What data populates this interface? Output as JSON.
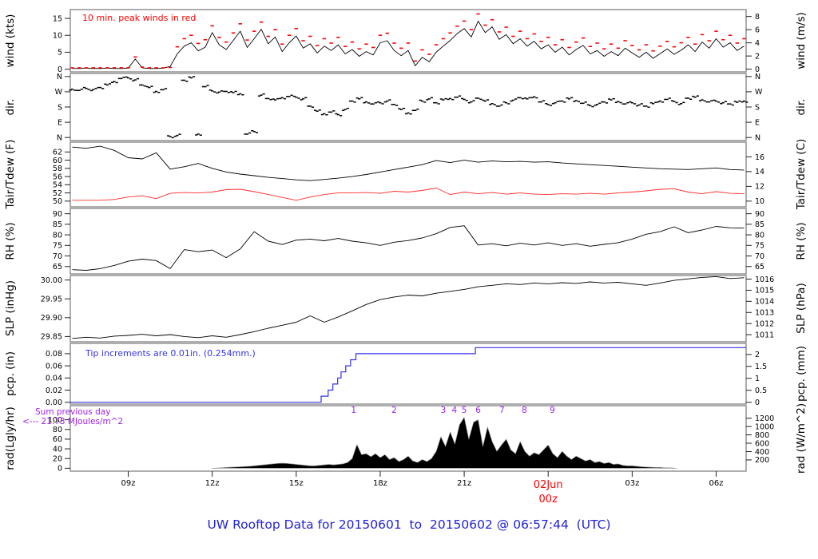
{
  "page": {
    "footer": "UW Rooftop Data for 20150601  to  20150602 @ 06:57:44  (UTC)",
    "colors": {
      "accent_red": "#ff0000",
      "precip_blue": "#3333ee",
      "annotation_purple": "#a020f0",
      "title_blue": "#2222dd",
      "trace_black": "#000000",
      "panel_border": "#777777"
    }
  },
  "x_axis": {
    "tmin": 6.93,
    "tmax": 31.07,
    "ticks": [
      {
        "t": 9,
        "label": "09z"
      },
      {
        "t": 12,
        "label": "12z"
      },
      {
        "t": 15,
        "label": "15z"
      },
      {
        "t": 18,
        "label": "18z"
      },
      {
        "t": 21,
        "label": "21z"
      },
      {
        "t": 24,
        "label": "00z",
        "label2": "02Jun",
        "color": "#ff0000"
      },
      {
        "t": 27,
        "label": "03z"
      },
      {
        "t": 30,
        "label": "06z"
      }
    ]
  },
  "chart_data": [
    {
      "id": "wind",
      "type": "line",
      "left_label": "wind (kts)",
      "right_label": "wind (m/s)",
      "annotation": "10 min. peak winds in red",
      "ylim": [
        -0.8,
        17.6
      ],
      "left_ticks": [
        {
          "v": 0,
          "label": "0"
        },
        {
          "v": 5,
          "label": "5"
        },
        {
          "v": 10,
          "label": "10"
        },
        {
          "v": 15,
          "label": "15"
        }
      ],
      "right_ticks": [
        {
          "v": 0,
          "label": "0"
        },
        {
          "v": 3.889,
          "label": "2"
        },
        {
          "v": 7.777,
          "label": "4"
        },
        {
          "v": 11.666,
          "label": "6"
        },
        {
          "v": 15.555,
          "label": "8"
        }
      ],
      "x_start": 7,
      "x_step": 0.25,
      "avg_kts": [
        0.2,
        0.2,
        0.3,
        0.2,
        0.2,
        0.3,
        0.2,
        0.2,
        0.3,
        3.0,
        0.4,
        0.2,
        0.2,
        0.3,
        0.8,
        4.5,
        6.8,
        7.8,
        5.4,
        6.5,
        10.8,
        7.2,
        5.8,
        8.5,
        11.2,
        6.4,
        9.0,
        11.8,
        7.5,
        9.5,
        5.2,
        7.8,
        9.8,
        6.2,
        7.5,
        4.8,
        6.8,
        5.5,
        7.2,
        4.5,
        5.8,
        3.8,
        5.2,
        4.2,
        7.8,
        8.4,
        5.5,
        4.0,
        5.5,
        1.0,
        3.5,
        2.2,
        5.0,
        6.8,
        8.5,
        10.5,
        12.0,
        9.5,
        14.2,
        10.8,
        12.5,
        8.8,
        10.2,
        7.5,
        9.0,
        6.8,
        8.2,
        6.0,
        7.2,
        5.0,
        6.5,
        4.2,
        5.8,
        7.0,
        4.5,
        5.5,
        3.8,
        5.2,
        4.0,
        6.2,
        4.8,
        3.5,
        5.0,
        3.2,
        4.6,
        6.0,
        4.4,
        5.6,
        7.2,
        5.2,
        8.0,
        6.2,
        9.0,
        6.5,
        7.8,
        5.5,
        6.8
      ],
      "peak_kts": [
        0.4,
        0.4,
        0.4,
        0.4,
        0.4,
        0.4,
        0.4,
        0.4,
        0.4,
        3.6,
        0.6,
        0.4,
        0.4,
        0.4,
        0.5,
        6.6,
        9.0,
        10.0,
        7.6,
        8.7,
        12.8,
        9.4,
        8.0,
        10.7,
        13.4,
        8.6,
        11.2,
        13.9,
        9.7,
        11.7,
        7.4,
        10.0,
        12.0,
        8.4,
        9.7,
        7.0,
        9.0,
        7.7,
        9.4,
        6.7,
        8.0,
        6.0,
        7.4,
        6.4,
        10.0,
        10.6,
        7.7,
        6.2,
        7.7,
        2.4,
        5.7,
        4.4,
        7.2,
        9.0,
        10.7,
        12.7,
        14.2,
        11.7,
        16.3,
        13.0,
        14.6,
        11.0,
        12.4,
        9.7,
        11.2,
        9.0,
        10.4,
        8.2,
        9.4,
        7.2,
        8.7,
        6.4,
        8.0,
        9.2,
        6.7,
        7.7,
        6.0,
        7.4,
        6.2,
        8.4,
        7.0,
        5.7,
        7.2,
        5.4,
        6.8,
        8.2,
        6.6,
        7.8,
        9.4,
        7.4,
        10.2,
        8.4,
        11.2,
        8.7,
        10.0,
        7.7,
        9.0
      ]
    },
    {
      "id": "dir",
      "type": "scatter",
      "left_label": "dir.",
      "right_label": "dir.",
      "ylim": [
        -18,
        378
      ],
      "left_ticks": [
        {
          "v": 0,
          "label": "N"
        },
        {
          "v": 90,
          "label": "E"
        },
        {
          "v": 180,
          "label": "S"
        },
        {
          "v": 270,
          "label": "W"
        },
        {
          "v": 360,
          "label": "N"
        }
      ],
      "right_ticks": [
        {
          "v": 0,
          "label": "N"
        },
        {
          "v": 90,
          "label": "E"
        },
        {
          "v": 180,
          "label": "S"
        },
        {
          "v": 270,
          "label": "W"
        },
        {
          "v": 360,
          "label": "N"
        }
      ],
      "x_start": 7,
      "x_step": 0.25,
      "deg": [
        285,
        278,
        290,
        282,
        295,
        310,
        330,
        348,
        352,
        340,
        310,
        295,
        272,
        282,
        5,
        12,
        338,
        352,
        20,
        300,
        275,
        268,
        272,
        265,
        258,
        20,
        35,
        250,
        230,
        222,
        235,
        242,
        238,
        228,
        185,
        155,
        140,
        150,
        135,
        165,
        215,
        228,
        210,
        198,
        205,
        215,
        195,
        165,
        145,
        160,
        215,
        228,
        205,
        222,
        230,
        238,
        225,
        210,
        232,
        215,
        200,
        185,
        205,
        220,
        235,
        228,
        240,
        210,
        195,
        205,
        215,
        228,
        218,
        202,
        188,
        195,
        210,
        222,
        212,
        198,
        205,
        192,
        185,
        200,
        215,
        225,
        212,
        200,
        232,
        238,
        222,
        210,
        215,
        205,
        198,
        208,
        215
      ]
    },
    {
      "id": "tair",
      "type": "line",
      "left_label": "Tair/Tdew (F)",
      "right_label": "Tair/Tdew (C)",
      "ylim": [
        48.6,
        64.4
      ],
      "left_ticks": [
        {
          "v": 50,
          "label": "50"
        },
        {
          "v": 52,
          "label": "52"
        },
        {
          "v": 54,
          "label": "54"
        },
        {
          "v": 56,
          "label": "56"
        },
        {
          "v": 58,
          "label": "58"
        },
        {
          "v": 60,
          "label": "60"
        },
        {
          "v": 62,
          "label": "62"
        }
      ],
      "right_ticks": [
        {
          "v": 50,
          "label": "10"
        },
        {
          "v": 53.6,
          "label": "12"
        },
        {
          "v": 57.2,
          "label": "14"
        },
        {
          "v": 60.8,
          "label": "16"
        }
      ],
      "x_start": 7,
      "x_step": 0.5,
      "tair_f": [
        63.2,
        62.9,
        63.4,
        62.4,
        60.6,
        60.3,
        61.8,
        57.8,
        58.4,
        59.2,
        58.0,
        57.1,
        56.6,
        56.2,
        55.8,
        55.5,
        55.2,
        55.0,
        55.3,
        55.6,
        56.0,
        56.5,
        57.1,
        57.7,
        58.3,
        58.9,
        59.9,
        59.4,
        60.0,
        59.5,
        59.8,
        59.6,
        59.7,
        59.5,
        59.6,
        59.3,
        59.1,
        58.9,
        58.7,
        58.5,
        58.3,
        58.1,
        57.9,
        57.8,
        57.7,
        57.9,
        58.1,
        57.7,
        57.6
      ],
      "tdew_f": [
        50.2,
        50.2,
        50.2,
        50.4,
        51.0,
        51.3,
        50.6,
        51.9,
        52.1,
        52.0,
        52.2,
        52.8,
        52.9,
        52.3,
        51.6,
        50.9,
        50.2,
        51.0,
        51.6,
        52.0,
        52.0,
        52.1,
        51.9,
        52.4,
        52.2,
        52.6,
        53.2,
        51.6,
        52.2,
        51.8,
        52.1,
        51.7,
        52.0,
        51.7,
        51.6,
        51.8,
        51.7,
        51.9,
        51.7,
        52.0,
        52.2,
        52.5,
        52.9,
        53.0,
        52.2,
        51.8,
        52.3,
        51.9,
        51.8
      ]
    },
    {
      "id": "rh",
      "type": "line",
      "left_label": "RH (%)",
      "right_label": "RH (%)",
      "ylim": [
        61.5,
        92.5
      ],
      "left_ticks": [
        {
          "v": 65,
          "label": "65"
        },
        {
          "v": 70,
          "label": "70"
        },
        {
          "v": 75,
          "label": "75"
        },
        {
          "v": 80,
          "label": "80"
        },
        {
          "v": 85,
          "label": "85"
        },
        {
          "v": 90,
          "label": "90"
        }
      ],
      "right_ticks": [
        {
          "v": 65,
          "label": "65"
        },
        {
          "v": 70,
          "label": "70"
        },
        {
          "v": 75,
          "label": "75"
        },
        {
          "v": 80,
          "label": "80"
        },
        {
          "v": 85,
          "label": "85"
        },
        {
          "v": 90,
          "label": "90"
        }
      ],
      "x_start": 7,
      "x_step": 0.5,
      "rh_pct": [
        63.5,
        63.2,
        64.0,
        65.5,
        67.5,
        68.5,
        67.8,
        64.0,
        73.0,
        72.0,
        72.8,
        69.2,
        73.3,
        81.5,
        77.0,
        75.4,
        77.5,
        78.0,
        77.2,
        78.3,
        77.0,
        76.2,
        75.0,
        76.5,
        77.3,
        78.5,
        80.5,
        83.5,
        84.3,
        75.2,
        75.8,
        74.8,
        76.0,
        75.2,
        76.2,
        75.0,
        75.8,
        74.6,
        75.5,
        76.3,
        78.0,
        80.3,
        81.5,
        83.8,
        81.0,
        82.3,
        84.0,
        83.3,
        83.2
      ]
    },
    {
      "id": "slp",
      "type": "line",
      "left_label": "SLP (inHg)",
      "right_label": "SLP (hPa)",
      "ylim": [
        29.836,
        30.012
      ],
      "left_ticks": [
        {
          "v": 29.85,
          "label": "29.85"
        },
        {
          "v": 29.9,
          "label": "29.90"
        },
        {
          "v": 29.95,
          "label": "29.95"
        },
        {
          "v": 30.0,
          "label": "30.00"
        }
      ],
      "right_ticks": [
        {
          "v": 29.8548,
          "label": "1011"
        },
        {
          "v": 29.8843,
          "label": "1012"
        },
        {
          "v": 29.9139,
          "label": "1013"
        },
        {
          "v": 29.9434,
          "label": "1014"
        },
        {
          "v": 29.9729,
          "label": "1015"
        },
        {
          "v": 30.0025,
          "label": "1016"
        }
      ],
      "x_start": 7,
      "x_step": 0.5,
      "inhg": [
        29.845,
        29.848,
        29.846,
        29.851,
        29.853,
        29.856,
        29.852,
        29.855,
        29.85,
        29.847,
        29.852,
        29.848,
        29.855,
        29.863,
        29.872,
        29.88,
        29.888,
        29.905,
        29.888,
        29.902,
        29.918,
        29.935,
        29.948,
        29.955,
        29.96,
        29.958,
        29.965,
        29.97,
        29.975,
        29.982,
        29.986,
        29.99,
        29.988,
        29.992,
        29.99,
        29.993,
        29.991,
        29.995,
        29.992,
        29.994,
        29.99,
        29.986,
        29.992,
        29.999,
        30.003,
        30.007,
        30.009,
        30.004,
        30.006
      ]
    },
    {
      "id": "pcp",
      "type": "line",
      "left_label": "pcp. (in)",
      "right_label": "pcp. (mm)",
      "annotation": "Tip increments are 0.01in. (0.254mm.)",
      "ylim": [
        -0.003,
        0.097
      ],
      "left_ticks": [
        {
          "v": 0,
          "label": "0.00"
        },
        {
          "v": 0.02,
          "label": "0.02"
        },
        {
          "v": 0.04,
          "label": "0.04"
        },
        {
          "v": 0.06,
          "label": "0.06"
        },
        {
          "v": 0.08,
          "label": "0.08"
        }
      ],
      "right_ticks": [
        {
          "v": 0,
          "label": "0"
        },
        {
          "v": 0.0197,
          "label": "0.5"
        },
        {
          "v": 0.0394,
          "label": "1"
        },
        {
          "v": 0.0591,
          "label": "1.5"
        },
        {
          "v": 0.0787,
          "label": "2"
        }
      ],
      "baseline_in": 0,
      "steps": [
        [
          15.89,
          0.01
        ],
        [
          16.14,
          0.02
        ],
        [
          16.31,
          0.03
        ],
        [
          16.48,
          0.04
        ],
        [
          16.6,
          0.05
        ],
        [
          16.77,
          0.06
        ],
        [
          16.94,
          0.07
        ],
        [
          17.13,
          0.08
        ],
        [
          21.4,
          0.09
        ]
      ]
    },
    {
      "id": "rad",
      "type": "area",
      "left_label": "rad(Lgly/hr)",
      "right_label": "rad (W/m^2)",
      "annotation_line1": "Sum previous day",
      "annotation_line2": "<--- 21.73 MJoules/m^2",
      "ylim": [
        -6,
        129
      ],
      "left_ticks": [
        {
          "v": 0,
          "label": "0"
        },
        {
          "v": 20,
          "label": "20"
        },
        {
          "v": 40,
          "label": "40"
        },
        {
          "v": 60,
          "label": "60"
        },
        {
          "v": 80,
          "label": "80"
        },
        {
          "v": 100,
          "label": "100"
        }
      ],
      "right_ticks": [
        {
          "v": 17.2,
          "label": "200"
        },
        {
          "v": 34.4,
          "label": "400"
        },
        {
          "v": 51.6,
          "label": "600"
        },
        {
          "v": 68.8,
          "label": "800"
        },
        {
          "v": 86.0,
          "label": "1000"
        },
        {
          "v": 103.2,
          "label": "1200"
        }
      ],
      "x_start": 12,
      "x_step": 0.16667,
      "lgly_hr": [
        0,
        0.5,
        1,
        1.5,
        2,
        2.5,
        3,
        3.5,
        4,
        5,
        6,
        7,
        8,
        9,
        10,
        10.5,
        10,
        9,
        8,
        7,
        6,
        5,
        5,
        6,
        7,
        8,
        7,
        8,
        9,
        12,
        20,
        49,
        28,
        30,
        24,
        30,
        22,
        28,
        18,
        22,
        14,
        18,
        25,
        15,
        12,
        18,
        14,
        20,
        35,
        65,
        45,
        75,
        50,
        90,
        105,
        60,
        95,
        100,
        45,
        85,
        55,
        35,
        48,
        60,
        38,
        30,
        55,
        35,
        25,
        32,
        28,
        38,
        48,
        30,
        22,
        35,
        25,
        18,
        25,
        20,
        15,
        18,
        12,
        14,
        10,
        12,
        8,
        9,
        6,
        5,
        5,
        4,
        3,
        2.5,
        2,
        1.5,
        1.5,
        1,
        0.8,
        0.5
      ],
      "mj_markers": [
        {
          "t": 17.05,
          "label": "1"
        },
        {
          "t": 18.5,
          "label": "2"
        },
        {
          "t": 20.25,
          "label": "3"
        },
        {
          "t": 20.65,
          "label": "4"
        },
        {
          "t": 21.0,
          "label": "5"
        },
        {
          "t": 21.5,
          "label": "6"
        },
        {
          "t": 22.35,
          "label": "7"
        },
        {
          "t": 23.15,
          "label": "8"
        },
        {
          "t": 24.15,
          "label": "9"
        }
      ]
    }
  ]
}
